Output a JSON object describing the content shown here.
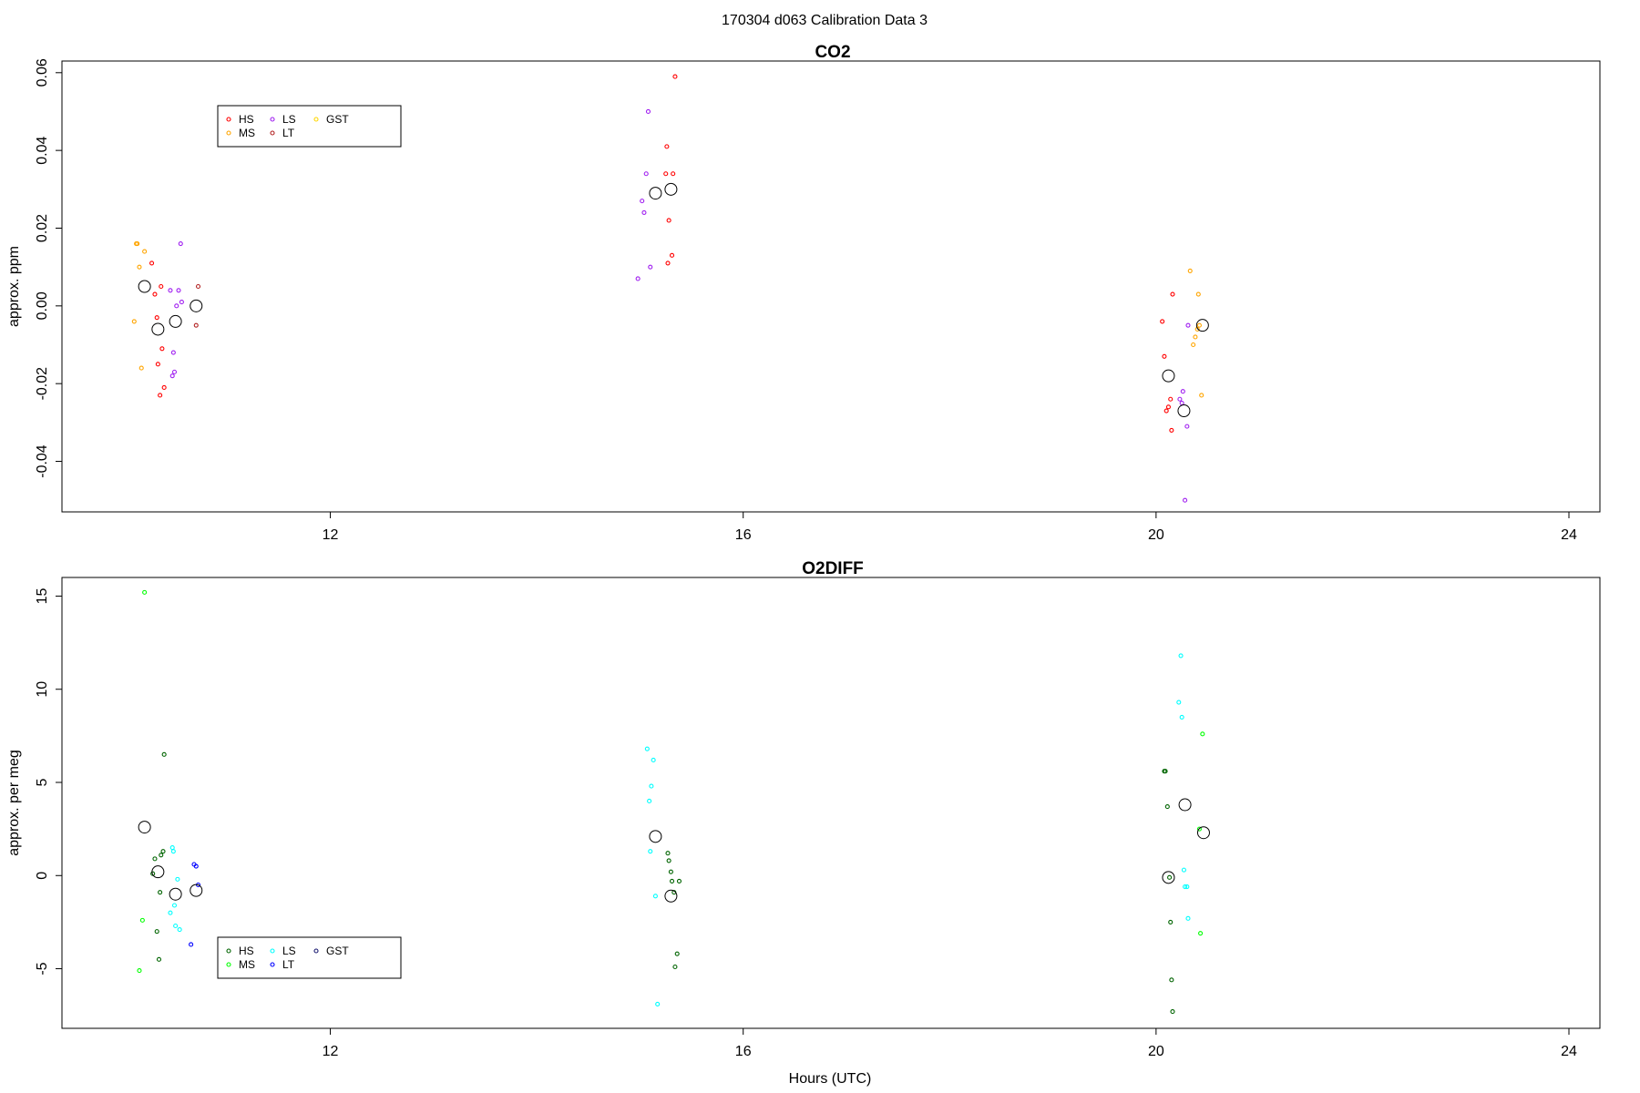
{
  "figure": {
    "main_title": "170304   d063   Calibration Data 3"
  },
  "chart_data": [
    {
      "type": "scatter",
      "title": "CO2",
      "xlabel": "",
      "ylabel": "approx. ppm",
      "xlim": [
        9.4,
        24.3
      ],
      "ylim": [
        -0.053,
        0.063
      ],
      "xticks": [
        12,
        16,
        20,
        24
      ],
      "yticks": [
        -0.04,
        -0.02,
        0.0,
        0.02,
        0.04,
        0.06
      ],
      "ytick_labels": [
        "-0.04",
        "-0.02",
        "0.00",
        "0.02",
        "0.04",
        "0.06"
      ],
      "grid": false,
      "legend_position": "top-left",
      "legend": [
        {
          "label": "HS",
          "color": "#ff0000"
        },
        {
          "label": "MS",
          "color": "#ffa500"
        },
        {
          "label": "LS",
          "color": "#a020f0"
        },
        {
          "label": "LT",
          "color": "#b22222"
        },
        {
          "label": "GST",
          "color": "#ffd700"
        }
      ],
      "series": [
        {
          "name": "HS",
          "color": "#ff0000",
          "points": [
            [
              10.27,
              0.011
            ],
            [
              10.3,
              0.003
            ],
            [
              10.32,
              -0.003
            ],
            [
              10.33,
              -0.015
            ],
            [
              10.36,
              0.005
            ],
            [
              10.37,
              -0.011
            ],
            [
              10.39,
              -0.021
            ],
            [
              10.35,
              -0.023
            ],
            [
              15.25,
              0.034
            ],
            [
              15.26,
              0.041
            ],
            [
              15.28,
              0.022
            ],
            [
              15.27,
              0.011
            ],
            [
              15.31,
              0.013
            ],
            [
              15.32,
              0.034
            ],
            [
              15.34,
              0.059
            ],
            [
              20.06,
              -0.004
            ],
            [
              20.08,
              -0.013
            ],
            [
              20.1,
              -0.027
            ],
            [
              20.12,
              -0.026
            ],
            [
              20.14,
              -0.024
            ],
            [
              20.15,
              -0.032
            ],
            [
              20.16,
              0.003
            ]
          ]
        },
        {
          "name": "MS",
          "color": "#ffa500",
          "points": [
            [
              10.1,
              -0.004
            ],
            [
              10.12,
              0.016
            ],
            [
              10.13,
              0.016
            ],
            [
              10.15,
              0.01
            ],
            [
              10.17,
              -0.016
            ],
            [
              10.2,
              0.014
            ],
            [
              20.33,
              0.009
            ],
            [
              20.36,
              -0.01
            ],
            [
              20.38,
              -0.008
            ],
            [
              20.4,
              -0.006
            ],
            [
              20.42,
              -0.005
            ],
            [
              20.41,
              0.003
            ],
            [
              20.44,
              -0.023
            ]
          ]
        },
        {
          "name": "LS",
          "color": "#a020f0",
          "points": [
            [
              10.45,
              0.004
            ],
            [
              10.47,
              -0.018
            ],
            [
              10.48,
              -0.012
            ],
            [
              10.49,
              -0.017
            ],
            [
              10.51,
              0.0
            ],
            [
              10.53,
              0.004
            ],
            [
              10.55,
              0.016
            ],
            [
              10.56,
              0.001
            ],
            [
              14.98,
              0.007
            ],
            [
              15.02,
              0.027
            ],
            [
              15.04,
              0.024
            ],
            [
              15.06,
              0.034
            ],
            [
              15.08,
              0.05
            ],
            [
              15.1,
              0.01
            ],
            [
              20.23,
              -0.024
            ],
            [
              20.25,
              -0.025
            ],
            [
              20.26,
              -0.022
            ],
            [
              20.28,
              -0.05
            ],
            [
              20.3,
              -0.031
            ],
            [
              20.31,
              -0.005
            ]
          ]
        },
        {
          "name": "LT",
          "color": "#b22222",
          "points": [
            [
              10.7,
              -0.005
            ],
            [
              10.72,
              0.005
            ]
          ]
        },
        {
          "name": "GST",
          "color": "#ffd700",
          "points": []
        },
        {
          "name": "",
          "color": "#000000",
          "marker": "mean",
          "points": [
            [
              10.2,
              0.005
            ],
            [
              10.33,
              -0.006
            ],
            [
              10.5,
              -0.004
            ],
            [
              10.7,
              0.0
            ],
            [
              15.15,
              0.029
            ],
            [
              15.3,
              0.03
            ],
            [
              20.12,
              -0.018
            ],
            [
              20.27,
              -0.027
            ],
            [
              20.45,
              -0.005
            ]
          ]
        }
      ]
    },
    {
      "type": "scatter",
      "title": "O2DIFF",
      "xlabel": "Hours (UTC)",
      "ylabel": "approx. per meg",
      "xlim": [
        9.4,
        24.3
      ],
      "ylim": [
        -8.2,
        16.0
      ],
      "xticks": [
        12,
        16,
        20,
        24
      ],
      "yticks": [
        -5,
        0,
        5,
        10,
        15
      ],
      "ytick_labels": [
        "-5",
        "0",
        "5",
        "10",
        "15"
      ],
      "grid": false,
      "legend_position": "bottom-left",
      "legend": [
        {
          "label": "HS",
          "color": "#006400"
        },
        {
          "label": "MS",
          "color": "#00ff00"
        },
        {
          "label": "LS",
          "color": "#00ffff"
        },
        {
          "label": "LT",
          "color": "#0000ff"
        },
        {
          "label": "GST",
          "color": "#191970"
        }
      ],
      "series": [
        {
          "name": "HS",
          "color": "#006400",
          "points": [
            [
              10.28,
              0.1
            ],
            [
              10.3,
              0.9
            ],
            [
              10.32,
              -3.0
            ],
            [
              10.34,
              -4.5
            ],
            [
              10.35,
              -0.9
            ],
            [
              10.36,
              1.1
            ],
            [
              10.38,
              1.3
            ],
            [
              10.39,
              6.5
            ],
            [
              15.27,
              1.2
            ],
            [
              15.28,
              0.8
            ],
            [
              15.3,
              0.2
            ],
            [
              15.31,
              -0.3
            ],
            [
              15.33,
              -0.9
            ],
            [
              15.34,
              -4.9
            ],
            [
              15.36,
              -4.2
            ],
            [
              15.38,
              -0.3
            ],
            [
              20.08,
              5.6
            ],
            [
              20.09,
              5.6
            ],
            [
              20.11,
              3.7
            ],
            [
              20.13,
              -0.1
            ],
            [
              20.14,
              -2.5
            ],
            [
              20.15,
              -5.6
            ],
            [
              20.16,
              -7.3
            ]
          ]
        },
        {
          "name": "MS",
          "color": "#00ff00",
          "points": [
            [
              10.15,
              -5.1
            ],
            [
              10.18,
              -2.4
            ],
            [
              10.2,
              15.2
            ],
            [
              20.42,
              2.5
            ],
            [
              20.43,
              -3.1
            ],
            [
              20.45,
              7.6
            ]
          ]
        },
        {
          "name": "LS",
          "color": "#00ffff",
          "points": [
            [
              10.45,
              -2.0
            ],
            [
              10.47,
              1.5
            ],
            [
              10.48,
              1.3
            ],
            [
              10.49,
              -1.6
            ],
            [
              10.5,
              -2.7
            ],
            [
              10.52,
              -0.2
            ],
            [
              10.54,
              -2.9
            ],
            [
              15.07,
              6.8
            ],
            [
              15.09,
              4.0
            ],
            [
              15.1,
              1.3
            ],
            [
              15.11,
              4.8
            ],
            [
              15.13,
              6.2
            ],
            [
              15.15,
              -1.1
            ],
            [
              15.17,
              -6.9
            ],
            [
              20.22,
              9.3
            ],
            [
              20.24,
              11.8
            ],
            [
              20.25,
              8.5
            ],
            [
              20.27,
              0.3
            ],
            [
              20.28,
              -0.6
            ],
            [
              20.3,
              -0.6
            ],
            [
              20.31,
              -2.3
            ]
          ]
        },
        {
          "name": "LT",
          "color": "#0000ff",
          "points": [
            [
              10.65,
              -3.7
            ],
            [
              10.68,
              0.6
            ],
            [
              10.7,
              0.5
            ],
            [
              10.72,
              -0.5
            ]
          ]
        },
        {
          "name": "GST",
          "color": "#191970",
          "points": []
        },
        {
          "name": "",
          "color": "#000000",
          "marker": "mean",
          "points": [
            [
              10.2,
              2.6
            ],
            [
              10.33,
              0.2
            ],
            [
              10.5,
              -1.0
            ],
            [
              10.7,
              -0.8
            ],
            [
              15.15,
              2.1
            ],
            [
              15.3,
              -1.1
            ],
            [
              20.12,
              -0.1
            ],
            [
              20.28,
              3.8
            ],
            [
              20.46,
              2.3
            ]
          ]
        }
      ]
    }
  ]
}
